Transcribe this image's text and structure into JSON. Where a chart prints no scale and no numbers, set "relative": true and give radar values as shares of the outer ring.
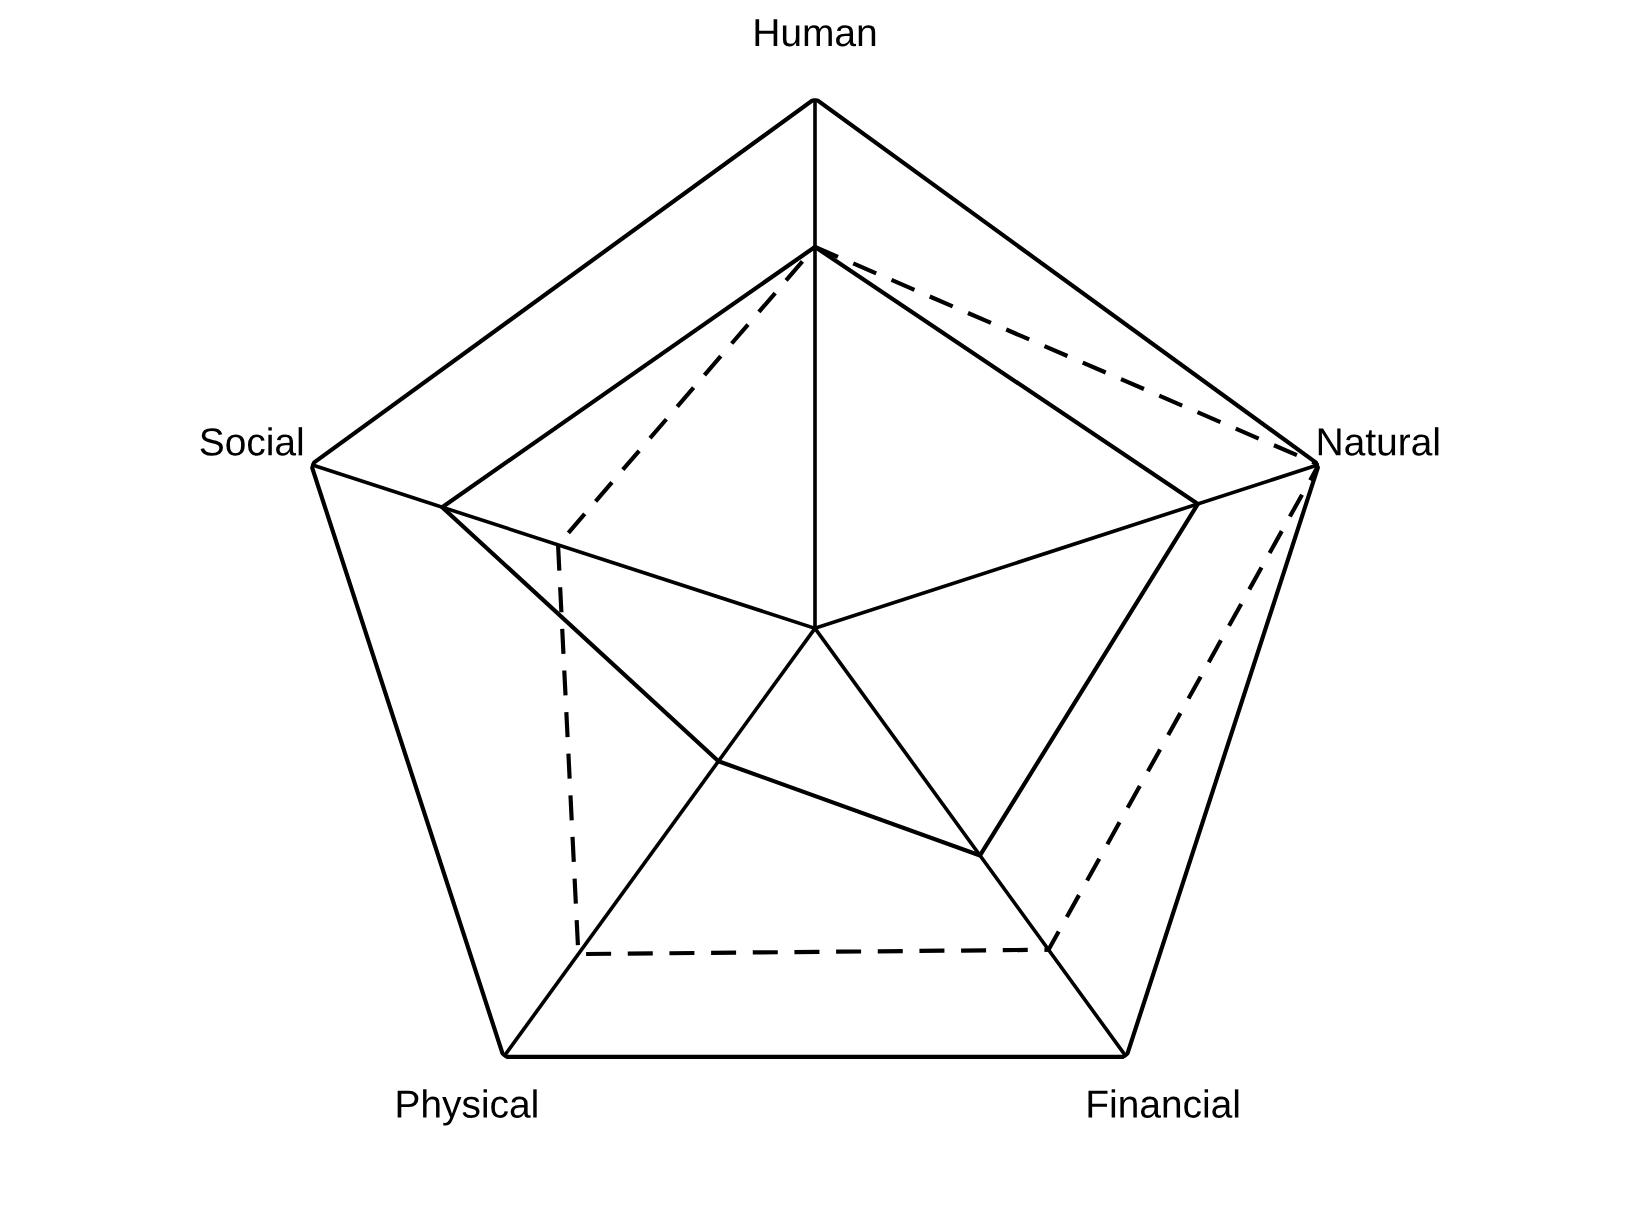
{
  "chart_data": {
    "type": "radar",
    "relative": true,
    "categories": [
      "Human",
      "Natural",
      "Financial",
      "Physical",
      "Social"
    ],
    "series": [
      {
        "color": "#000000",
        "line_style": "solid",
        "values": [
          0.72,
          0.76,
          0.53,
          0.31,
          0.74
        ]
      },
      {
        "color": "#000000",
        "line_style": "dashed",
        "values": [
          0.72,
          1.0,
          0.75,
          0.76,
          0.51
        ]
      }
    ],
    "grid": true
  }
}
